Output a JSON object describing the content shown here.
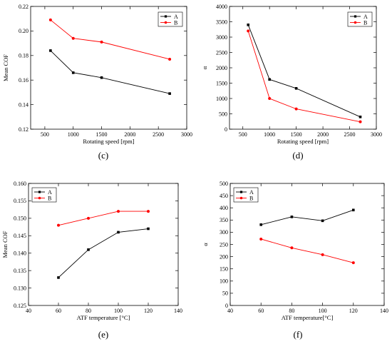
{
  "chart_data": [
    {
      "id": "c",
      "type": "line",
      "panel_label": "(c)",
      "xlabel": "Rotating speed [rpm]",
      "ylabel": "Mean COF",
      "xlim": [
        250,
        3000
      ],
      "ylim": [
        0.12,
        0.22
      ],
      "xticks": [
        500,
        1000,
        1500,
        2000,
        2500,
        3000
      ],
      "yticks": [
        0.12,
        0.14,
        0.16,
        0.18,
        0.2,
        0.22
      ],
      "ytick_labels": [
        "0.12",
        "0.14",
        "0.16",
        "0.18",
        "0.20",
        "0.22"
      ],
      "grid": false,
      "legend": "top-right",
      "series": [
        {
          "name": "A",
          "color": "#000000",
          "marker": "square",
          "x": [
            600,
            1000,
            1500,
            2700
          ],
          "values": [
            0.184,
            0.166,
            0.162,
            0.149
          ]
        },
        {
          "name": "B",
          "color": "#ff0000",
          "marker": "circle",
          "x": [
            600,
            1000,
            1500,
            2700
          ],
          "values": [
            0.209,
            0.194,
            0.191,
            0.177
          ]
        }
      ]
    },
    {
      "id": "d",
      "type": "line",
      "panel_label": "(d)",
      "xlabel": "Rotating speed [rpm]",
      "ylabel": "α",
      "xlim": [
        250,
        3000
      ],
      "ylim": [
        0,
        4000
      ],
      "xticks": [
        500,
        1000,
        1500,
        2000,
        2500,
        3000
      ],
      "yticks": [
        0,
        500,
        1000,
        1500,
        2000,
        2500,
        3000,
        3500,
        4000
      ],
      "ytick_labels": [
        "0",
        "500",
        "1000",
        "1500",
        "2000",
        "2500",
        "3000",
        "3500",
        "4000"
      ],
      "grid": false,
      "legend": "top-right",
      "series": [
        {
          "name": "A",
          "color": "#000000",
          "marker": "square",
          "x": [
            600,
            1000,
            1500,
            2700
          ],
          "values": [
            3400,
            1620,
            1330,
            400
          ]
        },
        {
          "name": "B",
          "color": "#ff0000",
          "marker": "circle",
          "x": [
            600,
            1000,
            1500,
            2700
          ],
          "values": [
            3200,
            1000,
            660,
            240
          ]
        }
      ]
    },
    {
      "id": "e",
      "type": "line",
      "panel_label": "(e)",
      "xlabel": "ATF temperature [°C]",
      "ylabel": "Mean COF",
      "xlim": [
        40,
        140
      ],
      "ylim": [
        0.125,
        0.16
      ],
      "xticks": [
        40,
        60,
        80,
        100,
        120,
        140
      ],
      "yticks": [
        0.125,
        0.13,
        0.135,
        0.14,
        0.145,
        0.15,
        0.155,
        0.16
      ],
      "ytick_labels": [
        "0.125",
        "0.130",
        "0.135",
        "0.140",
        "0.145",
        "0.150",
        "0.155",
        "0.160"
      ],
      "grid": false,
      "legend": "top-left",
      "series": [
        {
          "name": "A",
          "color": "#000000",
          "marker": "square",
          "x": [
            60,
            80,
            100,
            120
          ],
          "values": [
            0.133,
            0.141,
            0.146,
            0.147
          ]
        },
        {
          "name": "B",
          "color": "#ff0000",
          "marker": "circle",
          "x": [
            60,
            80,
            100,
            120
          ],
          "values": [
            0.148,
            0.15,
            0.152,
            0.152
          ]
        }
      ]
    },
    {
      "id": "f",
      "type": "line",
      "panel_label": "(f)",
      "xlabel": "ATF temperature[°C]",
      "ylabel": "α",
      "xlim": [
        40,
        140
      ],
      "ylim": [
        0,
        500
      ],
      "xticks": [
        40,
        60,
        80,
        100,
        120,
        140
      ],
      "yticks": [
        0,
        50,
        100,
        150,
        200,
        250,
        300,
        350,
        400,
        450,
        500
      ],
      "ytick_labels": [
        "0",
        "50",
        "100",
        "150",
        "200",
        "250",
        "300",
        "350",
        "400",
        "450",
        "500"
      ],
      "grid": false,
      "legend": "top-left",
      "series": [
        {
          "name": "A",
          "color": "#000000",
          "marker": "square",
          "x": [
            60,
            80,
            100,
            120
          ],
          "values": [
            331,
            363,
            347,
            391
          ]
        },
        {
          "name": "B",
          "color": "#ff0000",
          "marker": "circle",
          "x": [
            60,
            80,
            100,
            120
          ],
          "values": [
            272,
            236,
            208,
            175
          ]
        }
      ]
    }
  ]
}
